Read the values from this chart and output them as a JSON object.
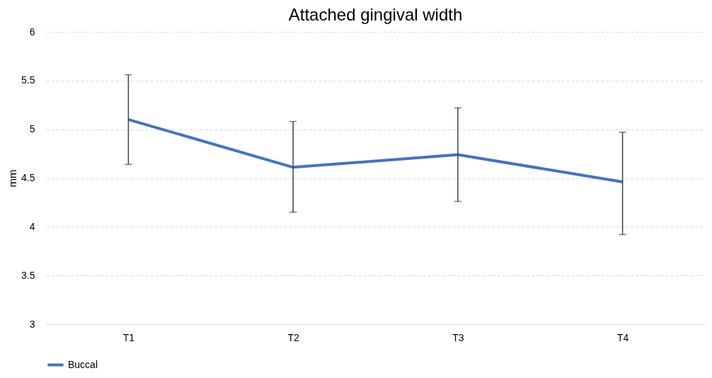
{
  "chart_data": {
    "type": "line",
    "title": "Attached gingival width",
    "ylabel": "mm",
    "categories": [
      "T1",
      "T2",
      "T3",
      "T4"
    ],
    "series": [
      {
        "name": "Buccal",
        "color": "#4472c4",
        "values": [
          5.1,
          4.61,
          4.74,
          4.46
        ],
        "errors": [
          [
            4.64,
            5.56
          ],
          [
            4.15,
            5.08
          ],
          [
            4.26,
            5.22
          ],
          [
            3.92,
            4.97
          ]
        ]
      }
    ],
    "ylim": [
      3,
      6
    ],
    "yticks": [
      3,
      3.5,
      4,
      4.5,
      5,
      5.5,
      6
    ],
    "grid": "y",
    "legend": "bottom",
    "marker": "none",
    "line_style": "solid"
  }
}
